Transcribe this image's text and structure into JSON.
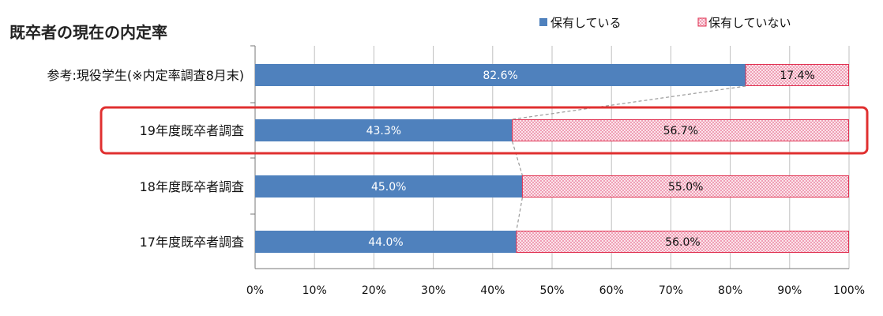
{
  "chart_data": {
    "type": "bar",
    "orientation": "horizontal",
    "stacked": "percent",
    "title": "既卒者の現在の内定率",
    "categories": [
      "参考:現役学生(※内定率調査8月末)",
      "19年度既卒者調査",
      "18年度既卒者調査",
      "17年度既卒者調査"
    ],
    "series": [
      {
        "name": "保有している",
        "values": [
          82.6,
          43.3,
          45.0,
          44.0
        ],
        "labels": [
          "82.6%",
          "43.3%",
          "45.0%",
          "44.0%"
        ],
        "color": "#4f81bd"
      },
      {
        "name": "保有していない",
        "values": [
          17.4,
          56.7,
          55.0,
          56.0
        ],
        "labels": [
          "17.4%",
          "56.7%",
          "55.0%",
          "56.0%"
        ],
        "color": "#f4c7d3",
        "edge": "#e03050"
      }
    ],
    "xlim": [
      0,
      100
    ],
    "x_ticks": [
      "0%",
      "10%",
      "20%",
      "30%",
      "40%",
      "50%",
      "60%",
      "70%",
      "80%",
      "90%",
      "100%"
    ],
    "grid": true,
    "legend_position": "top-right",
    "highlight_category_index": 1,
    "highlight_color": "#e03030",
    "connector_lines": true
  }
}
